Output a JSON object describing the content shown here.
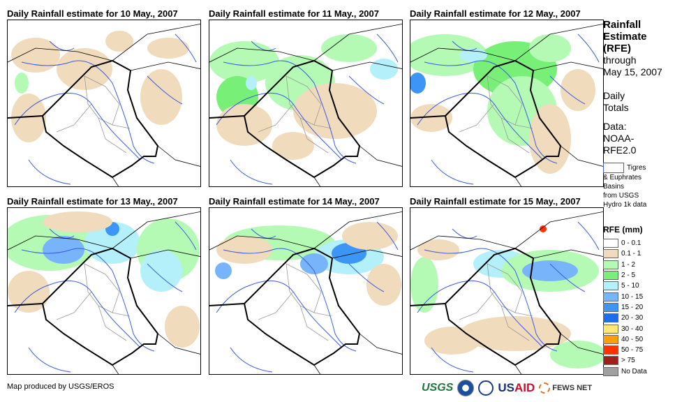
{
  "panels": [
    {
      "title": "Daily Rainfall estimate for 10 May., 2007"
    },
    {
      "title": "Daily Rainfall estimate for 11 May., 2007"
    },
    {
      "title": "Daily Rainfall estimate for 12 May., 2007"
    },
    {
      "title": "Daily Rainfall estimate for 13 May., 2007"
    },
    {
      "title": "Daily Rainfall estimate for 14 May., 2007"
    },
    {
      "title": "Daily Rainfall estimate for 15 May., 2007"
    }
  ],
  "side": {
    "l1": "Rainfall",
    "l2": "Estimate",
    "l3": "(RFE)",
    "l4": "through",
    "l5": "May 15, 2007",
    "l6": "Daily",
    "l7": "Totals",
    "l8": "Data:",
    "l9": "NOAA-",
    "l10": "RFE2.0"
  },
  "basin": {
    "l1": "Tigres",
    "l2": "& Euphrates",
    "l3": "Basins",
    "l4": "from USGS",
    "l5": "Hydro 1k data"
  },
  "legend": {
    "title": "RFE (mm)",
    "items": [
      {
        "label": "0 - 0.1",
        "color": "#ffffff"
      },
      {
        "label": "0.1 - 1",
        "color": "#f0dcbc"
      },
      {
        "label": "1 - 2",
        "color": "#b4fab4"
      },
      {
        "label": "2 - 5",
        "color": "#78f078"
      },
      {
        "label": "5 - 10",
        "color": "#b4f0fa"
      },
      {
        "label": "10 - 15",
        "color": "#78b4fa"
      },
      {
        "label": "15 - 20",
        "color": "#3c96f5"
      },
      {
        "label": "20 - 30",
        "color": "#1e6eeb"
      },
      {
        "label": "30 - 40",
        "color": "#ffe878"
      },
      {
        "label": "40 - 50",
        "color": "#ffa000"
      },
      {
        "label": "50 - 75",
        "color": "#ff3200"
      },
      {
        "label": "> 75",
        "color": "#a01e1e"
      },
      {
        "label": "No Data",
        "color": "#a0a0a0"
      }
    ]
  },
  "credit": "Map produced by USGS/EROS",
  "logos": {
    "usgs": "USGS",
    "usaid_a": "US",
    "usaid_b": "AID",
    "fews": "FEWS NET"
  }
}
